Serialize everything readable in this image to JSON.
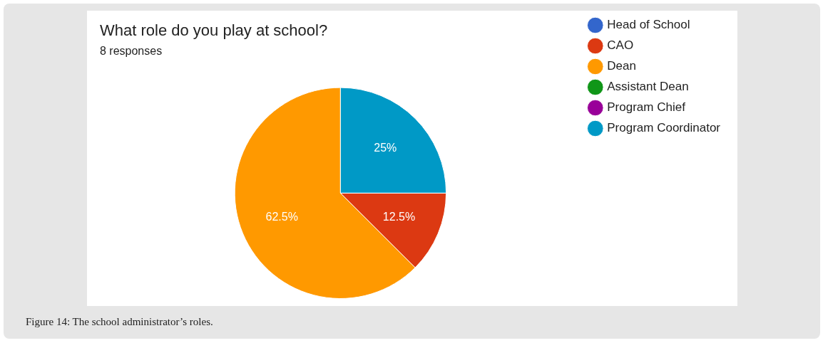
{
  "chart_data": {
    "type": "pie",
    "title": "What role do you play at school?",
    "subtitle": "8 responses",
    "categories": [
      "Head of School",
      "CAO",
      "Dean",
      "Assistant Dean",
      "Program Chief",
      "Program Coordinator"
    ],
    "values": [
      0,
      12.5,
      62.5,
      0,
      0,
      25
    ],
    "colors": [
      "#3366cc",
      "#dc3912",
      "#ff9900",
      "#109618",
      "#990099",
      "#0099c6"
    ],
    "value_labels": [
      null,
      "12.5%",
      "62.5%",
      null,
      null,
      "25%"
    ],
    "legend": "right",
    "annotations": [
      "Figure 14: The school administrator’s roles."
    ]
  }
}
